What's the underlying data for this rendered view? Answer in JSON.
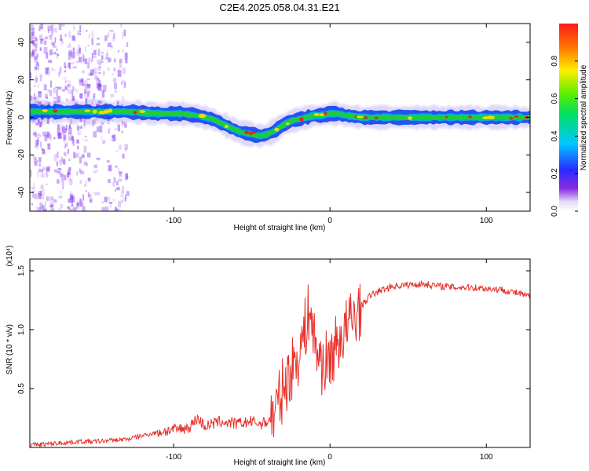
{
  "title": "C2E4.2025.058.04.31.E21",
  "colors": {
    "snr_line": "#e8302a",
    "track_core": "#e02020",
    "track_body": "#22cc33",
    "track_edge": "#1144ee",
    "track_halo": "#5522dd",
    "speckle": "#8a3ff0",
    "background": "#ffffff"
  },
  "chart_data": [
    {
      "id": "spectrogram",
      "type": "heatmap",
      "xlabel": "Height of straight line (km)",
      "ylabel": "Frequency (Hz)",
      "xlim": [
        -192,
        128
      ],
      "ylim": [
        -50,
        50
      ],
      "xticks": [
        -100,
        0,
        100
      ],
      "xtick_labels": [
        "-100",
        "0",
        "100"
      ],
      "yticks": [
        -40,
        -20,
        0,
        20,
        40
      ],
      "ytick_labels": [
        "-40",
        "-20",
        "0",
        "20",
        "40"
      ],
      "colorbar": {
        "label": "Normalized spectral amplitude",
        "range": [
          0,
          1
        ],
        "ticks": [
          0,
          0.2,
          0.4,
          0.6,
          0.8
        ],
        "tick_labels": [
          "0.0",
          "0.2",
          "0.4",
          "0.6",
          "0.8"
        ],
        "colormap": "rainbow (white-violet-blue-cyan-green-yellow-red)"
      },
      "ridge_center_hz": {
        "x": [
          -192,
          -170,
          -150,
          -130,
          -110,
          -95,
          -85,
          -75,
          -65,
          -57,
          -50,
          -45,
          -40,
          -35,
          -30,
          -25,
          -20,
          -15,
          -10,
          -5,
          0,
          5,
          10,
          20,
          40,
          60,
          80,
          100,
          128
        ],
        "y": [
          3,
          3,
          3,
          3,
          2,
          2,
          1,
          -1,
          -5,
          -8,
          -9,
          -10,
          -9,
          -7,
          -4,
          -2,
          -1,
          0,
          1,
          1,
          2,
          2,
          1,
          0,
          0,
          0,
          0,
          0,
          0
        ]
      }
    },
    {
      "id": "snr",
      "type": "line",
      "xlabel": "Height of straight line (km)",
      "ylabel": "SNR (10 * v/v)",
      "y_multiplier_label": "(x10⁴)",
      "xlim": [
        -192,
        128
      ],
      "ylim": [
        0,
        1.6
      ],
      "xticks": [
        -100,
        0,
        100
      ],
      "xtick_labels": [
        "-100",
        "0",
        "100"
      ],
      "yticks": [
        0.5,
        1.0,
        1.5
      ],
      "ytick_labels": [
        "0.5",
        "1.0",
        "1.5"
      ],
      "series": [
        {
          "name": "SNR",
          "x": [
            -192,
            -180,
            -170,
            -160,
            -150,
            -140,
            -130,
            -120,
            -110,
            -100,
            -90,
            -85,
            -80,
            -70,
            -60,
            -50,
            -45,
            -40,
            -35,
            -30,
            -25,
            -20,
            -15,
            -13,
            -10,
            -5,
            0,
            5,
            10,
            15,
            20,
            25,
            30,
            40,
            50,
            60,
            70,
            80,
            90,
            100,
            110,
            120,
            128
          ],
          "y": [
            0.02,
            0.03,
            0.04,
            0.05,
            0.05,
            0.06,
            0.07,
            0.1,
            0.13,
            0.15,
            0.17,
            0.25,
            0.18,
            0.22,
            0.2,
            0.22,
            0.2,
            0.22,
            0.3,
            0.5,
            0.65,
            0.8,
            1.05,
            1.2,
            0.9,
            0.7,
            0.75,
            0.9,
            1.0,
            1.1,
            1.2,
            1.28,
            1.32,
            1.37,
            1.38,
            1.39,
            1.37,
            1.36,
            1.36,
            1.35,
            1.34,
            1.31,
            1.28
          ]
        }
      ]
    }
  ]
}
